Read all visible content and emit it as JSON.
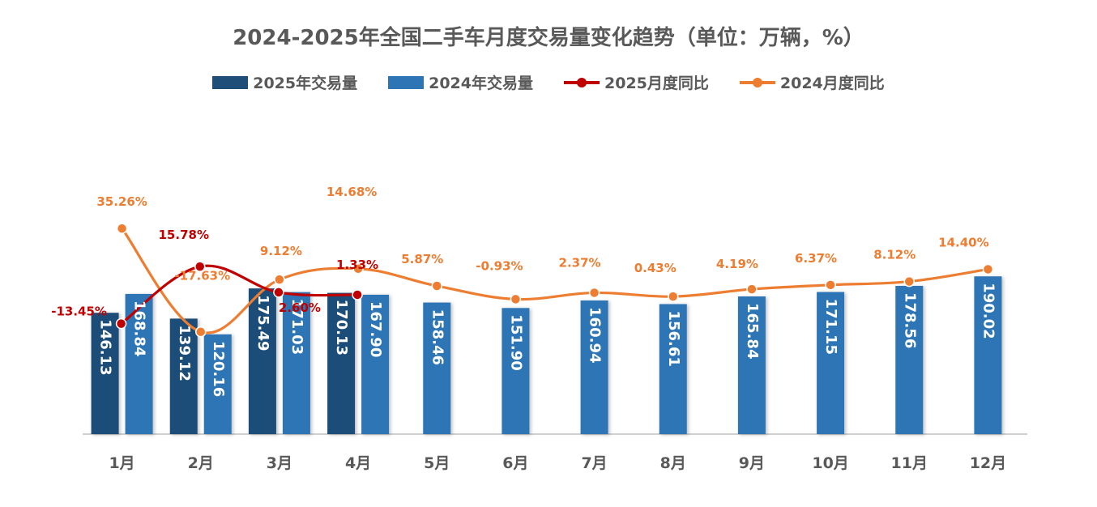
{
  "chart_data": {
    "type": "bar",
    "title": "2024-2025年全国二手车月度交易量变化趋势（单位：万辆，%）",
    "categories": [
      "1月",
      "2月",
      "3月",
      "4月",
      "5月",
      "6月",
      "7月",
      "8月",
      "9月",
      "10月",
      "11月",
      "12月"
    ],
    "series": [
      {
        "name": "2025年交易量",
        "kind": "bar",
        "color": "#1F4E79",
        "values": [
          146.13,
          139.12,
          175.49,
          170.13,
          null,
          null,
          null,
          null,
          null,
          null,
          null,
          null
        ],
        "labels": [
          "146.13",
          "139.12",
          "175.49",
          "170.13"
        ]
      },
      {
        "name": "2024年交易量",
        "kind": "bar",
        "color": "#2E75B6",
        "values": [
          168.84,
          120.16,
          171.03,
          167.9,
          158.46,
          151.9,
          160.94,
          156.61,
          165.84,
          171.15,
          178.56,
          190.02
        ],
        "labels": [
          "168.84",
          "120.16",
          "171.03",
          "167.90",
          "158.46",
          "151.90",
          "160.94",
          "156.61",
          "165.84",
          "171.15",
          "178.56",
          "190.02"
        ]
      },
      {
        "name": "2025月度同比",
        "kind": "line",
        "color": "#C00000",
        "values": [
          -13.45,
          15.78,
          2.6,
          1.33,
          null,
          null,
          null,
          null,
          null,
          null,
          null,
          null
        ],
        "labels": [
          "-13.45%",
          "15.78%",
          "2.60%",
          "1.33%"
        ]
      },
      {
        "name": "2024月度同比",
        "kind": "line",
        "color": "#ED7D31",
        "values": [
          35.26,
          -17.63,
          9.12,
          14.68,
          5.87,
          -0.93,
          2.37,
          0.43,
          4.19,
          6.37,
          8.12,
          14.4
        ],
        "labels": [
          "35.26%",
          "-17.63%",
          "9.12%",
          "14.68%",
          "5.87%",
          "-0.93%",
          "2.37%",
          "0.43%",
          "4.19%",
          "6.37%",
          "8.12%",
          "14.40%"
        ]
      }
    ],
    "legend_position": "top",
    "grid": false
  }
}
